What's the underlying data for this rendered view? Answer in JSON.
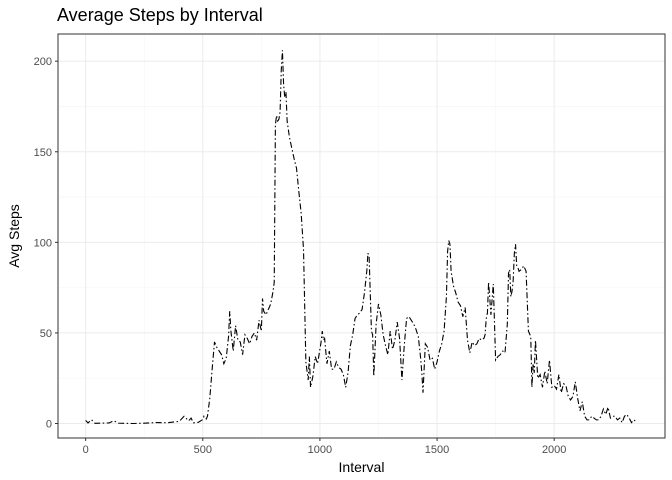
{
  "chart_data": {
    "type": "line",
    "title": "Average Steps by Interval",
    "xlabel": "Interval",
    "ylabel": "Avg Steps",
    "xlim": [
      -118,
      2473
    ],
    "ylim": [
      -8,
      215
    ],
    "xticks": [
      0,
      500,
      1000,
      1500,
      2000
    ],
    "yticks": [
      0,
      50,
      100,
      150,
      200
    ],
    "grid": true,
    "legend": "none",
    "line_style": "dashdot",
    "colors": {
      "line": "#000000",
      "grid_major": "#ebebeb",
      "grid_minor": "#f5f5f5",
      "panel_border": "#333333"
    },
    "series": [
      {
        "x": [
          0,
          10,
          25,
          40,
          60,
          100,
          120,
          140,
          200,
          250,
          300,
          350,
          400,
          420,
          440,
          450,
          460,
          480,
          500,
          505,
          515,
          520,
          530,
          540,
          550,
          560,
          580,
          590,
          600,
          610,
          615,
          620,
          630,
          640,
          650,
          660,
          670,
          680,
          690,
          700,
          710,
          720,
          730,
          740,
          750,
          755,
          760,
          770,
          780,
          790,
          800,
          805,
          810,
          815,
          820,
          825,
          830,
          835,
          840,
          845,
          850,
          855,
          860,
          870,
          880,
          890,
          900,
          910,
          920,
          930,
          940,
          950,
          955,
          960,
          970,
          980,
          990,
          1000,
          1005,
          1010,
          1015,
          1020,
          1030,
          1040,
          1050,
          1060,
          1070,
          1080,
          1090,
          1100,
          1110,
          1120,
          1130,
          1140,
          1150,
          1160,
          1170,
          1180,
          1190,
          1200,
          1205,
          1210,
          1220,
          1225,
          1230,
          1240,
          1250,
          1260,
          1270,
          1280,
          1290,
          1300,
          1310,
          1320,
          1330,
          1340,
          1350,
          1360,
          1370,
          1380,
          1390,
          1400,
          1410,
          1420,
          1430,
          1435,
          1440,
          1450,
          1460,
          1470,
          1480,
          1490,
          1500,
          1510,
          1520,
          1530,
          1540,
          1545,
          1550,
          1555,
          1560,
          1570,
          1580,
          1590,
          1600,
          1610,
          1620,
          1630,
          1640,
          1650,
          1660,
          1670,
          1680,
          1690,
          1700,
          1705,
          1710,
          1715,
          1720,
          1730,
          1740,
          1750,
          1760,
          1770,
          1780,
          1790,
          1800,
          1805,
          1810,
          1815,
          1820,
          1825,
          1830,
          1835,
          1840,
          1845,
          1850,
          1860,
          1870,
          1880,
          1890,
          1900,
          1905,
          1910,
          1915,
          1920,
          1930,
          1940,
          1950,
          1960,
          1970,
          1980,
          1990,
          2000,
          2010,
          2020,
          2030,
          2040,
          2050,
          2060,
          2070,
          2080,
          2090,
          2100,
          2110,
          2120,
          2130,
          2140,
          2150,
          2160,
          2170,
          2180,
          2190,
          2200,
          2210,
          2220,
          2230,
          2240,
          2250,
          2260,
          2270,
          2280,
          2290,
          2300,
          2310,
          2320,
          2330,
          2340,
          2350,
          2355
        ],
        "values": [
          1.7,
          0.3,
          2.1,
          0.1,
          0.2,
          0.3,
          1.5,
          0.2,
          0.0,
          0.2,
          0.5,
          0.4,
          1.2,
          4.0,
          1.5,
          3.0,
          0.4,
          0.6,
          2.2,
          4.0,
          2.5,
          4.0,
          14.0,
          30.0,
          45.0,
          42.0,
          38.0,
          33.0,
          36.0,
          48.0,
          62.0,
          51.0,
          40.0,
          54.0,
          46.0,
          45.0,
          38.0,
          49.0,
          47.0,
          44.0,
          48.0,
          50.0,
          46.0,
          57.0,
          51.0,
          69.0,
          62.0,
          60.0,
          63.0,
          66.0,
          73.0,
          78.0,
          165.0,
          170.0,
          167.0,
          168.0,
          172.0,
          195.0,
          206.0,
          187.0,
          180.0,
          183.0,
          167.0,
          158.0,
          152.0,
          146.0,
          141.0,
          128.0,
          116.0,
          96.0,
          34.0,
          24.0,
          37.0,
          20.0,
          26.0,
          37.0,
          33.0,
          41.0,
          45.0,
          51.0,
          46.0,
          47.0,
          33.0,
          40.0,
          30.0,
          30.0,
          34.0,
          31.0,
          30.0,
          27.0,
          20.0,
          28.0,
          43.0,
          49.0,
          58.0,
          60.0,
          61.0,
          63.0,
          72.0,
          84.0,
          94.0,
          92.0,
          51.0,
          49.0,
          26.0,
          55.0,
          66.0,
          60.0,
          49.0,
          43.0,
          38.0,
          51.0,
          41.0,
          46.0,
          56.0,
          47.0,
          24.0,
          43.0,
          58.0,
          59.0,
          57.0,
          55.0,
          52.0,
          48.0,
          36.0,
          28.0,
          17.0,
          44.0,
          42.0,
          35.0,
          36.0,
          30.0,
          34.0,
          40.0,
          44.0,
          51.0,
          70.0,
          95.0,
          101.0,
          99.0,
          84.0,
          76.0,
          72.0,
          67.0,
          65.0,
          59.0,
          64.0,
          46.0,
          39.0,
          45.0,
          43.0,
          44.0,
          47.0,
          46.0,
          47.0,
          49.0,
          58.0,
          61.0,
          78.0,
          60.0,
          77.0,
          35.0,
          37.0,
          38.0,
          40.0,
          39.0,
          55.0,
          83.0,
          85.0,
          70.0,
          73.0,
          79.0,
          94.0,
          99.0,
          87.0,
          86.0,
          84.0,
          85.0,
          87.0,
          84.0,
          51.0,
          48.0,
          20.0,
          33.0,
          28.0,
          46.0,
          25.0,
          27.0,
          20.0,
          29.0,
          22.0,
          35.0,
          20.0,
          21.0,
          19.0,
          27.0,
          17.0,
          22.0,
          21.0,
          15.0,
          13.0,
          15.0,
          23.0,
          14.0,
          7.0,
          12.0,
          4.0,
          2.0,
          2.0,
          4.0,
          3.0,
          2.0,
          2.0,
          4.0,
          8.0,
          5.0,
          9.0,
          3.0,
          4.0,
          4.0,
          2.0,
          3.0,
          0.5,
          4.0,
          5.0,
          3.0,
          0.5,
          2.0,
          1.0,
          1.1
        ]
      }
    ]
  }
}
